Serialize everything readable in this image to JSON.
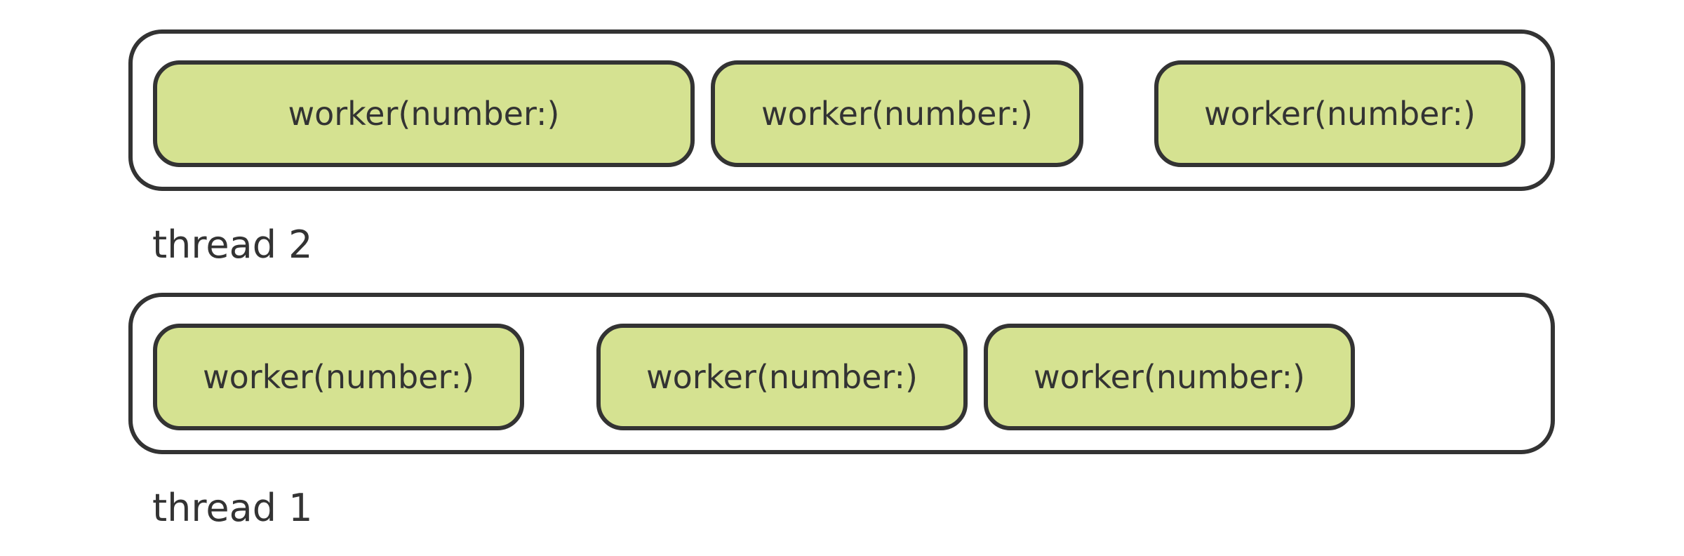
{
  "colors": {
    "worker_fill": "#d5e291",
    "outline": "#333333",
    "background": "#ffffff"
  },
  "threads": [
    {
      "label": "thread 2",
      "workers": [
        {
          "label": "worker(number:)"
        },
        {
          "label": "worker(number:)"
        },
        {
          "label": "worker(number:)"
        }
      ]
    },
    {
      "label": "thread 1",
      "workers": [
        {
          "label": "worker(number:)"
        },
        {
          "label": "worker(number:)"
        },
        {
          "label": "worker(number:)"
        }
      ]
    }
  ]
}
